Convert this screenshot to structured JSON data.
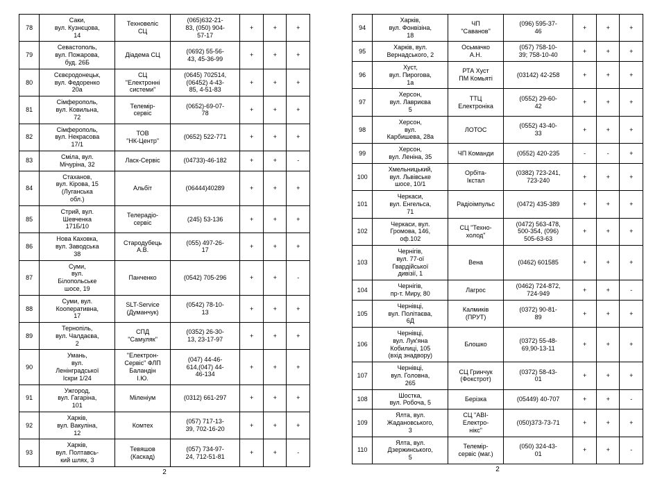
{
  "pageNumber": "2",
  "left": [
    {
      "n": "78",
      "addr": "Саки,\nвул. Кузнєцова,\n14",
      "org": "Техновеліс\nСЦ",
      "ph": "(065)632-21-\n83, (050) 904-\n57-17",
      "m": [
        "+",
        "+",
        "+"
      ]
    },
    {
      "n": "79",
      "addr": "Севастополь,\nвул. Пожарова,\nбуд. 26Б",
      "org": "Діадема СЦ",
      "ph": "(0692) 55-56-\n43, 45-36-99",
      "m": [
        "+",
        "+",
        "+"
      ]
    },
    {
      "n": "80",
      "addr": "Сєвєродонецьк,\nвул. Федоренко\n20а",
      "org": "СЦ\n\"Електронні\nсистеми\"",
      "ph": "(0645) 702514,\n(06452) 4-43-\n85, 4-51-83",
      "m": [
        "+",
        "+",
        "+"
      ]
    },
    {
      "n": "81",
      "addr": "Сімферополь,\nвул. Ковильна,\n72",
      "org": "Телемір-\nсервіс",
      "ph": "(0652)-69-07-\n78",
      "m": [
        "+",
        "+",
        "+"
      ]
    },
    {
      "n": "82",
      "addr": "Сімферополь,\nвул. Некрасова\n17/1",
      "org": "ТОВ\n\"НК-Центр\"",
      "ph": "(0652) 522-771",
      "m": [
        "+",
        "+",
        "+"
      ]
    },
    {
      "n": "83",
      "addr": "Сміла, вул.\nМічуріна, 32",
      "org": "Ласк-Сервіс",
      "ph": "(04733)-46-182",
      "m": [
        "+",
        "+",
        "-"
      ]
    },
    {
      "n": "84",
      "addr": "Стаханов,\nвул. Кірова, 15\n(Луганська\nобл.)",
      "org": "Альбіт",
      "ph": "(06444)40289",
      "m": [
        "+",
        "+",
        "+"
      ]
    },
    {
      "n": "85",
      "addr": "Стрий, вул.\nШевченка\n171Б/10",
      "org": "Телерадіо-\nсервіс",
      "ph": "(245) 53-136",
      "m": [
        "+",
        "+",
        "+"
      ]
    },
    {
      "n": "86",
      "addr": "Нова Каховка,\nвул. Заводська\n38",
      "org": "Стародубець\nА.В.",
      "ph": "(055) 497-26-\n17",
      "m": [
        "+",
        "+",
        "+"
      ]
    },
    {
      "n": "87",
      "addr": "Суми,\nвул.\nБілопольське\nшосе, 19",
      "org": "Панченко",
      "ph": "(0542) 705-296",
      "m": [
        "+",
        "+",
        "-"
      ]
    },
    {
      "n": "88",
      "addr": "Суми, вул.\nКооперативна,\n17",
      "org": "SLT-Service\n(Думанчук)",
      "ph": "(0542) 78-10-\n13",
      "m": [
        "+",
        "+",
        "+"
      ]
    },
    {
      "n": "89",
      "addr": "Тернопіль,\nвул. Чалдаєва,\n2",
      "org": "СПД\n\"Самуляк\"",
      "ph": "(0352) 26-30-\n13, 23-17-97",
      "m": [
        "+",
        "+",
        "+"
      ]
    },
    {
      "n": "90",
      "addr": "Умань,\nвул.\nЛенінградської\nІскри 1/24",
      "org": "\"Електрон-\nСервіс\" ФЛП\nБаландін\nІ.Ю.",
      "ph": "(047) 44-46-\n614,(047) 44-\n46-134",
      "m": [
        "+",
        "+",
        "+"
      ]
    },
    {
      "n": "91",
      "addr": "Ужгород,\nвул. Гагаріна,\n101",
      "org": "Міленіум",
      "ph": "(0312) 661-297",
      "m": [
        "+",
        "+",
        "+"
      ]
    },
    {
      "n": "92",
      "addr": "Харків,\nвул. Вакуліна,\n12",
      "org": "Комтех",
      "ph": "(057) 717-13-\n39, 702-16-20",
      "m": [
        "+",
        "+",
        "+"
      ]
    },
    {
      "n": "93",
      "addr": "Харків,\nвул. Полтавсь-\nкий шлях, 3",
      "org": "Тевяшов\n(Каскад)",
      "ph": "(057) 734-97-\n24, 712-51-81",
      "m": [
        "+",
        "+",
        "-"
      ]
    }
  ],
  "right": [
    {
      "n": "94",
      "addr": "Харків,\nвул. Фонвізіна,\n18",
      "org": "ЧП\n\"Саванов\"",
      "ph": "(096) 595-37-\n46",
      "m": [
        "+",
        "+",
        "+"
      ]
    },
    {
      "n": "95",
      "addr": "Харків, вул.\nВернадського, 2",
      "org": "Осьмачко\nА.Н.",
      "ph": "(057) 758-10-\n39; 758-10-40",
      "m": [
        "+",
        "+",
        "+"
      ]
    },
    {
      "n": "96",
      "addr": "Хуст,\nвул. Пирогова,\n1а",
      "org": "РТА Хуст\nПМ Комьяті",
      "ph": "(03142) 42-258",
      "m": [
        "+",
        "+",
        "+"
      ]
    },
    {
      "n": "97",
      "addr": "Херсон,\nвул. Лавриєва\n5",
      "org": "ТТЦ\nЕлектроніка",
      "ph": "(0552) 29-60-\n42",
      "m": [
        "+",
        "+",
        "+"
      ]
    },
    {
      "n": "98",
      "addr": "Херсон,\nвул.\nКарбишева, 28а",
      "org": "ЛОТОС",
      "ph": "(0552) 43-40-\n33",
      "m": [
        "+",
        "+",
        "+"
      ]
    },
    {
      "n": "99",
      "addr": "Херсон,\nвул. Леніна, 35",
      "org": "ЧП Команди",
      "ph": "(0552) 420-235",
      "m": [
        "-",
        "-",
        "+"
      ]
    },
    {
      "n": "100",
      "addr": "Хмельницький,\nвул. Львівське\nшосе, 10/1",
      "org": "Орбіта-\nІкстал",
      "ph": "(0382) 723-241,\n723-240",
      "m": [
        "+",
        "+",
        "+"
      ]
    },
    {
      "n": "101",
      "addr": "Черкаси,\nвул. Енгельса,\n71",
      "org": "Радіоімпульс",
      "ph": "(0472) 435-389",
      "m": [
        "+",
        "+",
        "+"
      ]
    },
    {
      "n": "102",
      "addr": "Черкаси, вул.\nГромова, 146,\nоф.102",
      "org": "СЦ \"Техно-\nхолод\"",
      "ph": "(0472) 563-478,\n500-354, (096)\n505-63-63",
      "m": [
        "+",
        "+",
        "+"
      ]
    },
    {
      "n": "103",
      "addr": "Чернігів,\nвул. 77-ої\nГвардійської\nдивізії, 1",
      "org": "Вена",
      "ph": "(0462) 601585",
      "m": [
        "+",
        "+",
        "+"
      ]
    },
    {
      "n": "104",
      "addr": "Чернігів,\nпр-т. Миру, 80",
      "org": "Лагрос",
      "ph": "(0462) 724-872,\n724-949",
      "m": [
        "+",
        "+",
        "-"
      ]
    },
    {
      "n": "105",
      "addr": "Чернівці,\nвул. Політаєва,\n6Д",
      "org": "Калмиків\n(ПРУТ)",
      "ph": "(0372) 90-81-\n89",
      "m": [
        "+",
        "+",
        "+"
      ]
    },
    {
      "n": "106",
      "addr": "Чернівці,\nвул. Лук'яна\nКобилиці, 105\n(вхід знадвору)",
      "org": "Блошко",
      "ph": "(0372) 55-48-\n69,90-13-11",
      "m": [
        "+",
        "+",
        "+"
      ]
    },
    {
      "n": "107",
      "addr": "Чернівці,\nвул. Головна,\n265",
      "org": "СЦ Гринчук\n(Фокстрот)",
      "ph": "(0372) 58-43-\n01",
      "m": [
        "+",
        "+",
        "+"
      ]
    },
    {
      "n": "108",
      "addr": "Шостка,\nвул. Робоча, 5",
      "org": "Берізка",
      "ph": "(05449) 40-707",
      "m": [
        "+",
        "+",
        "-"
      ]
    },
    {
      "n": "109",
      "addr": "Ялта, вул.\nЖадановського,\n3",
      "org": "СЦ \"АВІ-\nЕлектро-\nнікс\"",
      "ph": "(050)373-73-71",
      "m": [
        "+",
        "+",
        "+"
      ]
    },
    {
      "n": "110",
      "addr": "Ялта, вул.\nДзержинського,\n5",
      "org": "Телемір-\nсервіс (маг.)",
      "ph": "(050) 324-43-\n01",
      "m": [
        "+",
        "+",
        "-"
      ]
    }
  ]
}
